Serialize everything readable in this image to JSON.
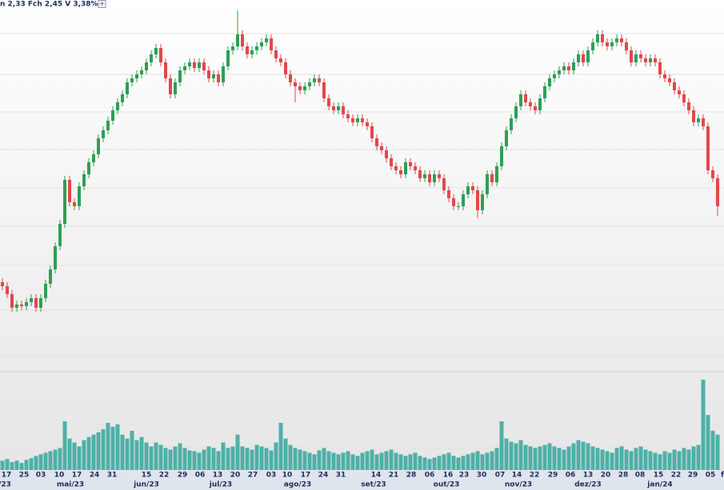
{
  "chart_data": {
    "type": "candlestick",
    "header": "n 2,33 Fch 2,45 V 3,38% )",
    "open": [
      1.5,
      1.45,
      1.35,
      1.18,
      1.22,
      1.2,
      1.25,
      1.3,
      1.18,
      1.3,
      1.48,
      1.66,
      1.95,
      2.23,
      2.78,
      2.5,
      2.45,
      2.7,
      2.85,
      3.0,
      3.1,
      3.3,
      3.4,
      3.52,
      3.65,
      3.75,
      3.85,
      4.0,
      4.05,
      4.1,
      4.15,
      4.25,
      4.35,
      4.43,
      4.25,
      4.05,
      3.85,
      4.0,
      4.15,
      4.2,
      4.25,
      4.18,
      4.25,
      4.15,
      4.05,
      4.1,
      4.0,
      4.2,
      4.4,
      4.45,
      4.6,
      4.45,
      4.35,
      4.4,
      4.45,
      4.5,
      4.55,
      4.4,
      4.3,
      4.25,
      4.1,
      4.0,
      3.95,
      3.9,
      3.95,
      4.0,
      4.05,
      4.0,
      3.8,
      3.7,
      3.65,
      3.7,
      3.6,
      3.55,
      3.5,
      3.55,
      3.5,
      3.45,
      3.3,
      3.2,
      3.15,
      3.05,
      2.95,
      2.9,
      2.85,
      3.0,
      2.95,
      2.9,
      2.8,
      2.85,
      2.75,
      2.85,
      2.8,
      2.65,
      2.55,
      2.45,
      2.45,
      2.6,
      2.7,
      2.65,
      2.4,
      2.6,
      2.85,
      2.75,
      2.95,
      3.2,
      3.4,
      3.55,
      3.7,
      3.85,
      3.75,
      3.7,
      3.65,
      3.8,
      3.95,
      4.05,
      4.1,
      4.15,
      4.2,
      4.15,
      4.25,
      4.35,
      4.25,
      4.4,
      4.5,
      4.6,
      4.5,
      4.45,
      4.5,
      4.55,
      4.5,
      4.4,
      4.25,
      4.35,
      4.3,
      4.25,
      4.3,
      4.25,
      4.1,
      4.05,
      4.0,
      3.9,
      3.85,
      3.75,
      3.65,
      3.5,
      3.55,
      3.45,
      2.9,
      2.8
    ],
    "high": [
      1.55,
      1.5,
      1.4,
      1.27,
      1.27,
      1.3,
      1.35,
      1.35,
      1.35,
      1.53,
      1.71,
      2.0,
      2.28,
      2.83,
      2.83,
      2.55,
      2.75,
      2.9,
      3.05,
      3.15,
      3.35,
      3.45,
      3.57,
      3.7,
      3.8,
      3.9,
      4.05,
      4.1,
      4.15,
      4.2,
      4.3,
      4.4,
      4.48,
      4.48,
      4.3,
      4.1,
      4.05,
      4.2,
      4.25,
      4.3,
      4.3,
      4.3,
      4.3,
      4.2,
      4.15,
      4.15,
      4.25,
      4.45,
      4.5,
      4.9,
      4.65,
      4.5,
      4.45,
      4.5,
      4.55,
      4.6,
      4.6,
      4.45,
      4.35,
      4.3,
      4.15,
      4.05,
      4.0,
      4.0,
      4.05,
      4.1,
      4.1,
      4.05,
      3.85,
      3.75,
      3.75,
      3.75,
      3.65,
      3.6,
      3.6,
      3.6,
      3.55,
      3.5,
      3.35,
      3.25,
      3.2,
      3.1,
      3.0,
      2.95,
      3.05,
      3.05,
      3.0,
      2.95,
      2.9,
      2.9,
      2.9,
      2.9,
      2.85,
      2.7,
      2.6,
      2.5,
      2.65,
      2.75,
      2.75,
      2.7,
      2.65,
      2.9,
      2.9,
      3.0,
      3.25,
      3.45,
      3.6,
      3.75,
      3.9,
      3.9,
      3.8,
      3.75,
      3.85,
      4.0,
      4.1,
      4.15,
      4.2,
      4.25,
      4.25,
      4.3,
      4.4,
      4.4,
      4.45,
      4.55,
      4.65,
      4.65,
      4.55,
      4.55,
      4.6,
      4.6,
      4.55,
      4.45,
      4.4,
      4.4,
      4.35,
      4.35,
      4.35,
      4.3,
      4.15,
      4.1,
      4.05,
      3.95,
      3.9,
      3.8,
      3.7,
      3.6,
      3.6,
      3.5,
      2.95,
      2.85
    ],
    "low": [
      1.4,
      1.3,
      1.13,
      1.13,
      1.15,
      1.15,
      1.2,
      1.13,
      1.13,
      1.25,
      1.43,
      1.61,
      1.9,
      2.18,
      2.45,
      2.4,
      2.4,
      2.65,
      2.8,
      2.95,
      3.05,
      3.25,
      3.35,
      3.47,
      3.6,
      3.7,
      3.8,
      3.95,
      4.0,
      4.05,
      4.1,
      4.2,
      4.3,
      4.2,
      4.0,
      3.8,
      3.8,
      3.95,
      4.1,
      4.15,
      4.13,
      4.13,
      4.1,
      4.0,
      4.0,
      3.95,
      3.95,
      4.15,
      4.35,
      4.4,
      4.4,
      4.3,
      4.3,
      4.35,
      4.4,
      4.45,
      4.35,
      4.25,
      4.2,
      4.05,
      3.95,
      3.75,
      3.85,
      3.85,
      3.9,
      3.95,
      3.95,
      3.75,
      3.65,
      3.6,
      3.6,
      3.55,
      3.5,
      3.45,
      3.45,
      3.45,
      3.4,
      3.25,
      3.15,
      3.1,
      3.0,
      2.9,
      2.85,
      2.8,
      2.8,
      2.9,
      2.85,
      2.75,
      2.75,
      2.7,
      2.7,
      2.75,
      2.6,
      2.5,
      2.4,
      2.4,
      2.4,
      2.55,
      2.6,
      2.3,
      2.35,
      2.55,
      2.7,
      2.7,
      2.9,
      3.15,
      3.35,
      3.5,
      3.65,
      3.7,
      3.65,
      3.6,
      3.6,
      3.75,
      3.9,
      4.0,
      4.05,
      4.1,
      4.1,
      4.1,
      4.2,
      4.2,
      4.2,
      4.35,
      4.45,
      4.45,
      4.4,
      4.4,
      4.45,
      4.45,
      4.35,
      4.2,
      4.2,
      4.25,
      4.2,
      4.2,
      4.2,
      4.05,
      4.0,
      3.95,
      3.85,
      3.8,
      3.7,
      3.6,
      3.45,
      3.45,
      3.4,
      2.85,
      2.75,
      2.33
    ],
    "close": [
      1.45,
      1.35,
      1.18,
      1.22,
      1.2,
      1.25,
      1.3,
      1.18,
      1.3,
      1.48,
      1.66,
      1.95,
      2.23,
      2.78,
      2.5,
      2.45,
      2.7,
      2.85,
      3.0,
      3.1,
      3.3,
      3.4,
      3.52,
      3.65,
      3.75,
      3.85,
      4.0,
      4.05,
      4.1,
      4.15,
      4.25,
      4.35,
      4.43,
      4.25,
      4.05,
      3.85,
      4.0,
      4.15,
      4.2,
      4.25,
      4.18,
      4.25,
      4.15,
      4.05,
      4.1,
      4.0,
      4.2,
      4.4,
      4.45,
      4.6,
      4.45,
      4.35,
      4.4,
      4.45,
      4.5,
      4.55,
      4.4,
      4.3,
      4.25,
      4.1,
      4.0,
      3.95,
      3.9,
      3.95,
      4.0,
      4.05,
      4.0,
      3.8,
      3.7,
      3.65,
      3.7,
      3.6,
      3.55,
      3.5,
      3.55,
      3.5,
      3.45,
      3.3,
      3.2,
      3.15,
      3.05,
      2.95,
      2.9,
      2.85,
      3.0,
      2.95,
      2.9,
      2.8,
      2.85,
      2.75,
      2.85,
      2.8,
      2.65,
      2.55,
      2.45,
      2.45,
      2.6,
      2.7,
      2.65,
      2.4,
      2.6,
      2.85,
      2.75,
      2.95,
      3.2,
      3.4,
      3.55,
      3.7,
      3.85,
      3.75,
      3.7,
      3.65,
      3.8,
      3.95,
      4.05,
      4.1,
      4.15,
      4.2,
      4.15,
      4.25,
      4.35,
      4.25,
      4.4,
      4.5,
      4.6,
      4.5,
      4.45,
      4.5,
      4.55,
      4.5,
      4.4,
      4.25,
      4.35,
      4.3,
      4.25,
      4.3,
      4.25,
      4.1,
      4.05,
      4.0,
      3.9,
      3.85,
      3.75,
      3.65,
      3.5,
      3.55,
      3.45,
      2.9,
      2.8,
      2.45
    ],
    "volume": [
      12,
      14,
      10,
      12,
      9,
      13,
      15,
      18,
      20,
      22,
      24,
      26,
      28,
      62,
      40,
      35,
      30,
      38,
      42,
      45,
      48,
      52,
      60,
      55,
      58,
      45,
      40,
      50,
      38,
      42,
      35,
      30,
      35,
      32,
      28,
      26,
      30,
      34,
      28,
      25,
      24,
      22,
      26,
      30,
      28,
      24,
      35,
      28,
      30,
      45,
      30,
      28,
      26,
      32,
      30,
      28,
      25,
      35,
      60,
      40,
      32,
      28,
      26,
      24,
      22,
      20,
      25,
      28,
      24,
      22,
      20,
      22,
      24,
      20,
      18,
      22,
      24,
      26,
      20,
      22,
      24,
      26,
      22,
      20,
      18,
      20,
      22,
      18,
      16,
      14,
      16,
      18,
      20,
      22,
      18,
      16,
      18,
      20,
      22,
      24,
      20,
      22,
      24,
      28,
      62,
      40,
      36,
      34,
      38,
      32,
      30,
      28,
      30,
      32,
      34,
      30,
      28,
      26,
      30,
      34,
      38,
      36,
      34,
      30,
      28,
      26,
      24,
      22,
      28,
      30,
      26,
      24,
      28,
      30,
      26,
      24,
      22,
      20,
      24,
      22,
      26,
      24,
      28,
      26,
      30,
      32,
      115,
      70,
      50,
      45
    ],
    "ylim": [
      0.43,
      5.03
    ],
    "volume_ylim": [
      0,
      120
    ],
    "up_color": "#2f9e55",
    "down_color": "#e2474d",
    "volume_color": "#4fb0a8",
    "day_labels": [
      "17",
      "25",
      "03",
      "10",
      "17",
      "24",
      "31",
      "15",
      "22",
      "29",
      "06",
      "13",
      "20",
      "27",
      "03",
      "10",
      "17",
      "24",
      "31",
      "14",
      "21",
      "28",
      "06",
      "16",
      "23",
      "30",
      "07",
      "14",
      "22",
      "29",
      "06",
      "13",
      "20",
      "28",
      "08",
      "15",
      "22",
      "29",
      "05",
      "f"
    ],
    "month_labels": [
      "/23",
      "mai/23",
      "jun/23",
      "jul/23",
      "ago/23",
      "set/23",
      "out/23",
      "nov/23",
      "dez/23",
      "jan/24"
    ]
  }
}
